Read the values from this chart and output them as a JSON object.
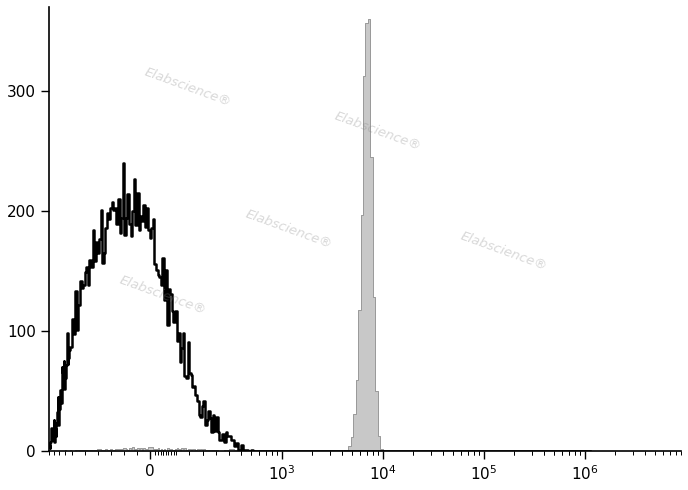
{
  "title": "",
  "xlabel": "",
  "ylabel": "",
  "ylim": [
    0,
    370
  ],
  "yticks": [
    0,
    100,
    200,
    300
  ],
  "background_color": "#ffffff",
  "watermark": "Elabscience®",
  "unstained_color": "#000000",
  "stained_fill_color": "#c8c8c8",
  "stained_edge_color": "#999999",
  "fig_width": 6.88,
  "fig_height": 4.9,
  "dpi": 100,
  "linthresh": 300,
  "linscale": 0.7
}
